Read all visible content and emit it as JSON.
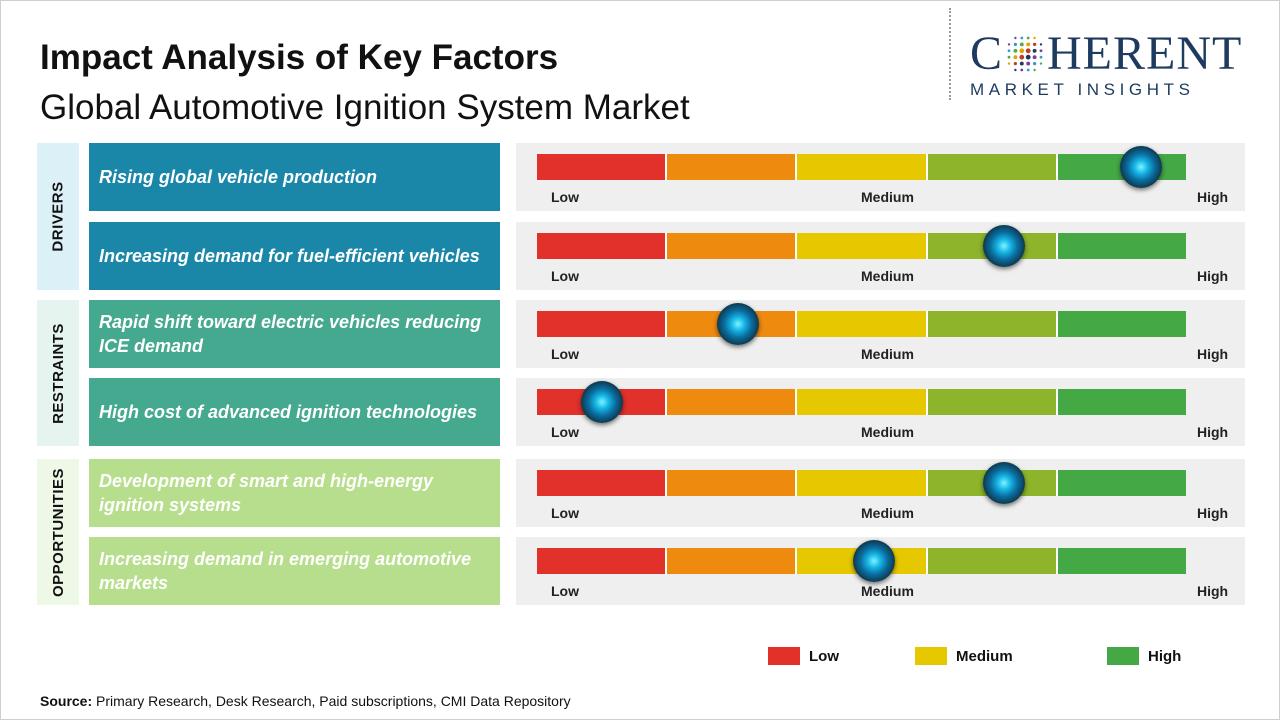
{
  "header": {
    "title": "Impact Analysis of Key Factors",
    "subtitle": "Global Automotive Ignition System Market"
  },
  "logo": {
    "main_left": "C",
    "main_right": "HERENT",
    "sub": "MARKET INSIGHTS"
  },
  "colors": {
    "low": "#e2302a",
    "low_mid": "#ee8a0e",
    "medium": "#e6c800",
    "mid_high": "#8db42a",
    "high": "#44a845",
    "drivers_box": "#1b87a8",
    "drivers_cat": "#dcf0f7",
    "restraints_box": "#44a98e",
    "restraints_cat": "#e6f4ef",
    "opportunities_box": "#b7de8c",
    "opportunities_cat": "#eef8e6",
    "knob": "#16b7e6"
  },
  "gauge_labels": {
    "low": "Low",
    "medium": "Medium",
    "high": "High"
  },
  "chart_data": {
    "type": "table",
    "scale": [
      "Low",
      "Medium",
      "High"
    ],
    "value_range": [
      0,
      1
    ],
    "categories": [
      {
        "name": "DRIVERS",
        "factors": [
          {
            "label": "Rising global vehicle production",
            "impact": 0.93
          },
          {
            "label": "Increasing demand for fuel-efficient vehicles",
            "impact": 0.72
          }
        ]
      },
      {
        "name": "RESTRAINTS",
        "factors": [
          {
            "label": "Rapid shift toward electric vehicles reducing ICE demand",
            "impact": 0.31
          },
          {
            "label": "High cost of advanced ignition technologies",
            "impact": 0.1
          }
        ]
      },
      {
        "name": "OPPORTUNITIES",
        "factors": [
          {
            "label": "Development of smart and high-energy ignition systems",
            "impact": 0.72
          },
          {
            "label": "Increasing demand in emerging automotive markets",
            "impact": 0.52
          }
        ]
      }
    ],
    "legend": [
      {
        "label": "Low",
        "color": "#e2302a"
      },
      {
        "label": "Medium",
        "color": "#e6c800"
      },
      {
        "label": "High",
        "color": "#44a845"
      }
    ]
  },
  "source": {
    "label": "Source:",
    "text": " Primary Research, Desk Research, Paid subscriptions, CMI Data Repository"
  }
}
